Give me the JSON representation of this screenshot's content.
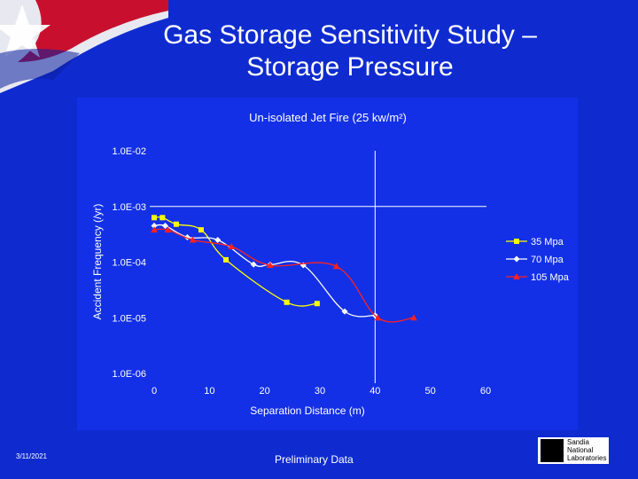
{
  "slide": {
    "title_line1": "Gas Storage Sensitivity Study –",
    "title_line2": "Storage Pressure",
    "date": "3/11/2021",
    "footer_note": "Preliminary Data",
    "logo_text": [
      "Sandia",
      "National",
      "Laboratories"
    ]
  },
  "colors": {
    "background": "#0f2bd0",
    "plot_area": "#1330e6",
    "axis_text": "#ffffff",
    "series_35": "#ffff00",
    "series_70": "#ffffff",
    "series_105": "#ff2020"
  },
  "chart_data": {
    "type": "line",
    "title": "Un-isolated Jet Fire  (25 kw/m²)",
    "xlabel": "Separation Distance (m)",
    "ylabel": "Accident Frequency  (/yr)",
    "xlim": [
      0,
      60
    ],
    "ylim": [
      1e-06,
      0.01
    ],
    "y_scale": "log",
    "x_ticks": [
      "0",
      "10",
      "20",
      "30",
      "40",
      "50",
      "60"
    ],
    "y_ticks": [
      "1.0E-02",
      "1.0E-03",
      "1.0E-04",
      "1.0E-05",
      "1.0E-06"
    ],
    "reference_lines": {
      "x": 40,
      "y": 0.001
    },
    "legend_position": "right",
    "series": [
      {
        "name": "35 Mpa",
        "color": "#ffff00",
        "marker": "square",
        "x": [
          0,
          1.5,
          4,
          8.5,
          13,
          24,
          29.5
        ],
        "y": [
          0.00063,
          0.00063,
          0.00048,
          0.00038,
          0.00011,
          1.9e-05,
          1.8e-05
        ]
      },
      {
        "name": "70 Mpa",
        "color": "#ffffff",
        "marker": "diamond",
        "x": [
          0,
          2,
          6,
          11.5,
          18,
          21,
          27,
          34.5,
          40
        ],
        "y": [
          0.00045,
          0.00045,
          0.00028,
          0.00025,
          9.1e-05,
          9e-05,
          8.8e-05,
          1.3e-05,
          1.1e-05
        ]
      },
      {
        "name": "105 Mpa",
        "color": "#ff2020",
        "marker": "triangle",
        "x": [
          0,
          2.5,
          7,
          14,
          21,
          33,
          40.5,
          47
        ],
        "y": [
          0.00038,
          0.00038,
          0.00025,
          0.00019,
          8.8e-05,
          8.4e-05,
          1e-05,
          1e-05
        ]
      }
    ]
  }
}
